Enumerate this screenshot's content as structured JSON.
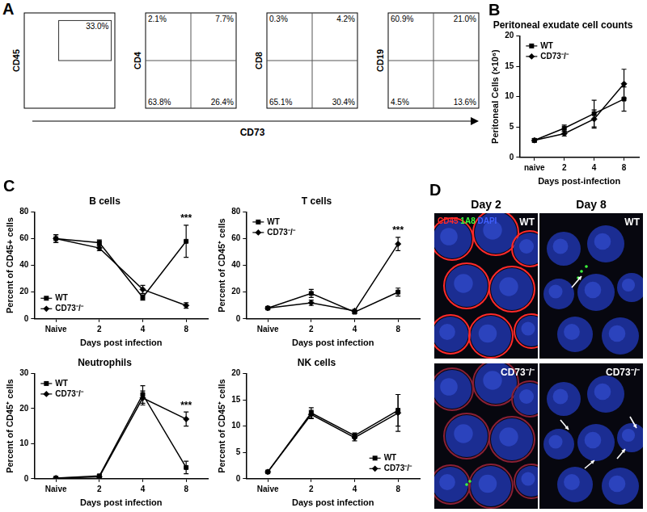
{
  "chart_data": [
    {
      "panel": "B",
      "type": "line",
      "title": "Peritoneal exudate cell counts",
      "x_label": "Days post-infection",
      "y_label": "Peritoneal Cells (×10⁶)",
      "categories": [
        "naive",
        "2",
        "4",
        "8"
      ],
      "ylim": [
        0,
        20
      ],
      "yticks": [
        0,
        5,
        10,
        15,
        20
      ],
      "grid": false,
      "legend": "upper left",
      "series": [
        {
          "name": "WT",
          "color": "#000000",
          "marker": "square",
          "line_style": "solid",
          "values": [
            2.8,
            4.8,
            7.2,
            9.6
          ],
          "errors": [
            0.3,
            0.5,
            2.2,
            2.0
          ]
        },
        {
          "name": "CD73⁻/⁻",
          "color": "#000000",
          "marker": "diamond",
          "line_style": "solid",
          "values": [
            2.8,
            3.9,
            6.3,
            12.1
          ],
          "errors": [
            0.3,
            0.4,
            1.5,
            2.4
          ]
        }
      ]
    },
    {
      "panel": "C",
      "type": "line",
      "title": "B cells",
      "x_label": "Days post infection",
      "y_label": "Percent of CD45+ cells",
      "categories": [
        "Naive",
        "2",
        "4",
        "8"
      ],
      "ylim": [
        0,
        80
      ],
      "yticks": [
        0,
        20,
        40,
        60,
        80
      ],
      "grid": false,
      "legend": "lower left",
      "annotations": [
        {
          "text": "***",
          "category": "8"
        }
      ],
      "series": [
        {
          "name": "WT",
          "color": "#000000",
          "marker": "square",
          "line_style": "solid",
          "values": [
            60,
            57,
            16,
            58
          ],
          "errors": [
            3,
            2,
            2,
            12
          ]
        },
        {
          "name": "CD73⁻/⁻",
          "color": "#000000",
          "marker": "diamond",
          "line_style": "solid",
          "values": [
            60,
            53,
            22,
            10
          ],
          "errors": [
            3,
            2,
            3,
            2
          ]
        }
      ]
    },
    {
      "type": "line",
      "title": "T cells",
      "x_label": "Days post infection",
      "y_label": "Percent of CD45⁺ cells",
      "categories": [
        "Naive",
        "2",
        "4",
        "8"
      ],
      "ylim": [
        0,
        80
      ],
      "yticks": [
        0,
        20,
        40,
        60,
        80
      ],
      "grid": false,
      "legend": "upper left",
      "annotations": [
        {
          "text": "***",
          "category": "8"
        }
      ],
      "series": [
        {
          "name": "WT",
          "color": "#000000",
          "marker": "square",
          "line_style": "solid",
          "values": [
            8,
            19,
            5,
            20
          ],
          "errors": [
            1,
            3,
            1,
            3
          ]
        },
        {
          "name": "CD73⁻/⁻",
          "color": "#000000",
          "marker": "diamond",
          "line_style": "solid",
          "values": [
            8,
            12,
            6,
            56
          ],
          "errors": [
            1,
            2,
            1,
            5
          ]
        }
      ]
    },
    {
      "type": "line",
      "title": "Neutrophils",
      "x_label": "Days post infection",
      "y_label": "Percent of CD45⁺ cells",
      "categories": [
        "Naive",
        "2",
        "4",
        "8"
      ],
      "ylim": [
        0,
        30
      ],
      "yticks": [
        0,
        10,
        20,
        30
      ],
      "grid": false,
      "legend": "upper left",
      "annotations": [
        {
          "text": "***",
          "category": "8"
        }
      ],
      "series": [
        {
          "name": "WT",
          "color": "#000000",
          "marker": "square",
          "line_style": "solid",
          "values": [
            0.2,
            0.8,
            24,
            3.2
          ],
          "errors": [
            0.2,
            0.3,
            2.5,
            1.8
          ]
        },
        {
          "name": "CD73⁻/⁻",
          "color": "#000000",
          "marker": "diamond",
          "line_style": "solid",
          "values": [
            0.2,
            0.5,
            23,
            17
          ],
          "errors": [
            0.2,
            0.2,
            2,
            2
          ]
        }
      ]
    },
    {
      "type": "line",
      "title": "NK cells",
      "x_label": "Days post infection",
      "y_label": "Percent of CD45⁺ cells",
      "categories": [
        "Naive",
        "2",
        "4",
        "8"
      ],
      "ylim": [
        0,
        20
      ],
      "yticks": [
        0,
        5,
        10,
        15,
        20
      ],
      "grid": false,
      "legend": "lower right",
      "series": [
        {
          "name": "WT",
          "color": "#000000",
          "marker": "square",
          "line_style": "solid",
          "values": [
            1.3,
            12.5,
            8.2,
            13
          ],
          "errors": [
            0.2,
            1,
            0.5,
            3
          ]
        },
        {
          "name": "CD73⁻/⁻",
          "color": "#000000",
          "marker": "diamond",
          "line_style": "solid",
          "values": [
            1.3,
            12.2,
            7.8,
            12.5
          ],
          "errors": [
            0.2,
            0.8,
            0.6,
            3.5
          ]
        }
      ]
    }
  ],
  "panel_A": {
    "panel": "A",
    "x_label": "CD73",
    "plots": [
      {
        "y_label": "CD45",
        "gate": "33.0%"
      },
      {
        "y_label": "CD4",
        "quadrants": {
          "upper_left": "2.1%",
          "upper_right": "7.7%",
          "lower_left": "63.8%",
          "lower_right": "26.4%"
        }
      },
      {
        "y_label": "CD8",
        "quadrants": {
          "upper_left": "0.3%",
          "upper_right": "4.2%",
          "lower_left": "65.1%",
          "lower_right": "30.4%"
        }
      },
      {
        "y_label": "CD19",
        "quadrants": {
          "upper_left": "60.9%",
          "upper_right": "21.0%",
          "lower_left": "4.5%",
          "lower_right": "13.6%"
        }
      }
    ]
  },
  "panel_D": {
    "panel": "D",
    "columns": [
      "Day 2",
      "Day 8"
    ],
    "rows": [
      "WT",
      "CD73⁻/⁻"
    ],
    "stain_legend": [
      {
        "text": "CD45",
        "color": "#ff2a2a"
      },
      {
        "text": "1A8",
        "color": "#3cff3c"
      },
      {
        "text": "DAPI",
        "color": "#4060ff"
      }
    ]
  }
}
